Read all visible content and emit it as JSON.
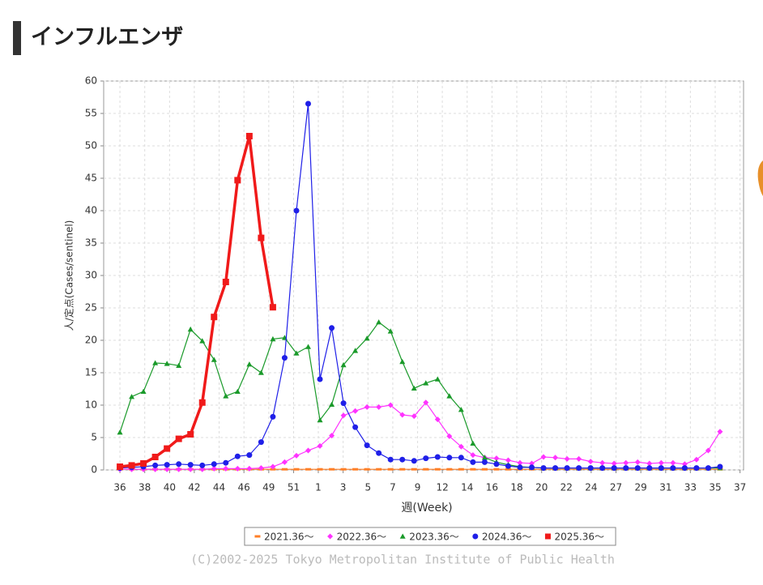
{
  "header": {
    "title": "インフルエンザ"
  },
  "chart_data": {
    "type": "line",
    "y_label": "人/定点(Cases/sentinel)",
    "x_label": "週(Week)",
    "x": [
      0,
      1,
      2,
      3,
      4,
      5,
      6,
      7,
      8,
      9,
      10,
      11,
      12,
      13,
      14,
      15,
      16,
      17,
      18,
      19,
      20,
      21,
      22,
      23,
      24,
      25,
      26,
      27,
      28,
      29,
      30,
      31,
      32,
      33,
      34,
      35,
      36,
      37,
      38,
      39,
      40,
      41,
      42,
      43,
      44,
      45,
      46,
      47,
      48,
      49,
      50,
      51
    ],
    "xlim": [
      -1.38,
      53.0
    ],
    "xticks": [
      {
        "value": 0,
        "label": "36"
      },
      {
        "value": 2.11,
        "label": "38"
      },
      {
        "value": 4.22,
        "label": "40"
      },
      {
        "value": 6.32,
        "label": "42"
      },
      {
        "value": 8.43,
        "label": "44"
      },
      {
        "value": 10.54,
        "label": "46"
      },
      {
        "value": 12.65,
        "label": "49"
      },
      {
        "value": 14.76,
        "label": "51"
      },
      {
        "value": 16.86,
        "label": "1"
      },
      {
        "value": 18.97,
        "label": "3"
      },
      {
        "value": 21.08,
        "label": "5"
      },
      {
        "value": 23.19,
        "label": "7"
      },
      {
        "value": 25.3,
        "label": "9"
      },
      {
        "value": 27.4,
        "label": "12"
      },
      {
        "value": 29.51,
        "label": "14"
      },
      {
        "value": 31.62,
        "label": "16"
      },
      {
        "value": 33.73,
        "label": "18"
      },
      {
        "value": 35.84,
        "label": "20"
      },
      {
        "value": 37.94,
        "label": "22"
      },
      {
        "value": 40.05,
        "label": "24"
      },
      {
        "value": 42.16,
        "label": "27"
      },
      {
        "value": 44.27,
        "label": "29"
      },
      {
        "value": 46.38,
        "label": "31"
      },
      {
        "value": 48.48,
        "label": "33"
      },
      {
        "value": 50.59,
        "label": "35"
      },
      {
        "value": 52.7,
        "label": "37"
      }
    ],
    "ylim": [
      0,
      60
    ],
    "yticks": [
      0,
      5,
      10,
      15,
      20,
      25,
      30,
      35,
      40,
      45,
      50,
      55,
      60
    ],
    "grid": true,
    "legend": "bottom",
    "series": [
      {
        "name": "2021.36～",
        "color": "#ff7f27",
        "marker": "dash",
        "values": [
          0.1,
          0.1,
          0.1,
          0.1,
          0.1,
          0.1,
          0.1,
          0.1,
          0.1,
          0.1,
          0.1,
          0.1,
          0.1,
          0.1,
          0.1,
          0.1,
          0.1,
          0.1,
          0.1,
          0.1,
          0.1,
          0.1,
          0.1,
          0.1,
          0.1,
          0.1,
          0.1,
          0.1,
          0.1,
          0.1,
          0.1,
          0.1,
          0.1,
          0.1,
          0.1,
          0.1,
          0.1,
          0.1,
          0.1,
          0.1,
          0.1,
          0.1,
          0.1,
          0.1,
          0.1,
          0.1,
          0.1,
          0.1,
          0.1,
          0.1,
          0.1,
          0.1
        ]
      },
      {
        "name": "2022.36～",
        "color": "#ff33ff",
        "marker": "diamond",
        "values": [
          0.1,
          0.1,
          0.1,
          0.1,
          0.1,
          0.1,
          0.1,
          0.1,
          0.2,
          0.2,
          0.2,
          0.2,
          0.3,
          0.5,
          1.2,
          2.2,
          3.0,
          3.7,
          5.3,
          8.4,
          9.1,
          9.7,
          9.7,
          10,
          8.5,
          8.3,
          10.4,
          7.8,
          5.2,
          3.6,
          2.3,
          1.9,
          1.8,
          1.5,
          1.1,
          1.0,
          2.0,
          1.9,
          1.7,
          1.7,
          1.3,
          1.1,
          1.0,
          1.1,
          1.2,
          1.0,
          1.1,
          1.1,
          0.9,
          1.6,
          3.0,
          5.9
        ]
      },
      {
        "name": "2023.36～",
        "color": "#1a9a2a",
        "marker": "triangle",
        "values": [
          5.8,
          11.3,
          12.1,
          16.5,
          16.4,
          16.1,
          21.7,
          19.9,
          17,
          11.4,
          12.1,
          16.3,
          15,
          20.2,
          20.4,
          18,
          19,
          7.7,
          10.1,
          16.2,
          18.4,
          20.3,
          22.8,
          21.4,
          16.7,
          12.6,
          13.4,
          14,
          11.4,
          9.3,
          4.1,
          1.9,
          1.2,
          0.8,
          0.5,
          0.4,
          0.3,
          0.3,
          0.3,
          0.3,
          0.3,
          0.3,
          0.3,
          0.3,
          0.3,
          0.3,
          0.3,
          0.3,
          0.3,
          0.3,
          0.3,
          0.3
        ]
      },
      {
        "name": "2024.36～",
        "color": "#1f1fe8",
        "marker": "circle",
        "values": [
          0.3,
          0.4,
          0.5,
          0.7,
          0.8,
          0.9,
          0.8,
          0.7,
          0.9,
          1.1,
          2.1,
          2.3,
          4.3,
          8.2,
          17.3,
          40,
          56.5,
          14,
          21.9,
          10.3,
          6.6,
          3.8,
          2.6,
          1.6,
          1.6,
          1.4,
          1.8,
          2.0,
          1.9,
          1.9,
          1.2,
          1.2,
          0.9,
          0.6,
          0.4,
          0.4,
          0.3,
          0.3,
          0.3,
          0.3,
          0.3,
          0.3,
          0.3,
          0.3,
          0.3,
          0.3,
          0.3,
          0.3,
          0.3,
          0.3,
          0.3,
          0.5
        ]
      },
      {
        "name": "2025.36～",
        "color": "#f01a1a",
        "marker": "square",
        "width": 3.5,
        "values": [
          0.5,
          0.7,
          1.0,
          2.0,
          3.3,
          4.8,
          5.5,
          10.4,
          23.6,
          29,
          44.7,
          51.5,
          35.8,
          25.1,
          null,
          null,
          null,
          null,
          null,
          null,
          null,
          null,
          null,
          null,
          null,
          null,
          null,
          null,
          null,
          null,
          null,
          null,
          null,
          null,
          null,
          null,
          null,
          null,
          null,
          null,
          null,
          null,
          null,
          null,
          null,
          null,
          null,
          null,
          null,
          null,
          null,
          null
        ]
      }
    ]
  },
  "copyright": "(C)2002-2025 Tokyo Metropolitan Institute of Public Health"
}
